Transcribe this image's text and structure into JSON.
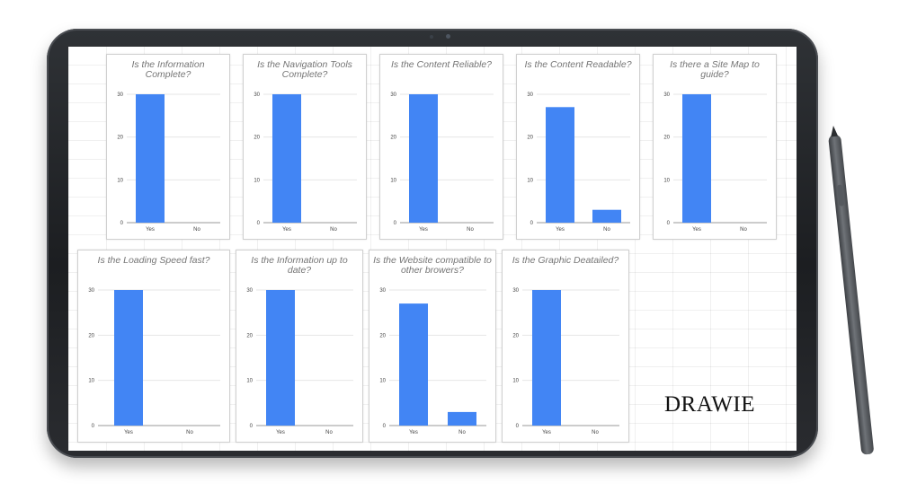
{
  "brand": {
    "watermark": "DRAWIE"
  },
  "colors": {
    "bar": "#4285f4",
    "axis": "#999999",
    "gridline": "#e6e6e6",
    "title": "#757575"
  },
  "chart_data": [
    {
      "type": "bar",
      "title": "Is the Information Complete?",
      "categories": [
        "Yes",
        "No"
      ],
      "values": [
        30,
        0
      ],
      "ylim": [
        0,
        30
      ],
      "yticks": [
        0,
        10,
        20,
        30
      ],
      "grid": true
    },
    {
      "type": "bar",
      "title": "Is the Navigation Tools Complete?",
      "categories": [
        "Yes",
        "No"
      ],
      "values": [
        30,
        0
      ],
      "ylim": [
        0,
        30
      ],
      "yticks": [
        0,
        10,
        20,
        30
      ],
      "grid": true
    },
    {
      "type": "bar",
      "title": "Is the Content Reliable?",
      "categories": [
        "Yes",
        "No"
      ],
      "values": [
        30,
        0
      ],
      "ylim": [
        0,
        30
      ],
      "yticks": [
        0,
        10,
        20,
        30
      ],
      "grid": true
    },
    {
      "type": "bar",
      "title": "Is the Content Readable?",
      "categories": [
        "Yes",
        "No"
      ],
      "values": [
        27,
        3
      ],
      "ylim": [
        0,
        30
      ],
      "yticks": [
        0,
        10,
        20,
        30
      ],
      "grid": true
    },
    {
      "type": "bar",
      "title": "Is there a Site Map to guide?",
      "categories": [
        "Yes",
        "No"
      ],
      "values": [
        30,
        0
      ],
      "ylim": [
        0,
        30
      ],
      "yticks": [
        0,
        10,
        20,
        30
      ],
      "grid": true
    },
    {
      "type": "bar",
      "title": "Is the Loading Speed fast?",
      "categories": [
        "Yes",
        "No"
      ],
      "values": [
        30,
        0
      ],
      "ylim": [
        0,
        30
      ],
      "yticks": [
        0,
        10,
        20,
        30
      ],
      "grid": true
    },
    {
      "type": "bar",
      "title": "Is the Information up to date?",
      "categories": [
        "Yes",
        "No"
      ],
      "values": [
        30,
        0
      ],
      "ylim": [
        0,
        30
      ],
      "yticks": [
        0,
        10,
        20,
        30
      ],
      "grid": true
    },
    {
      "type": "bar",
      "title": "Is the Website compatible to other browers?",
      "categories": [
        "Yes",
        "No"
      ],
      "values": [
        27,
        3
      ],
      "ylim": [
        0,
        30
      ],
      "yticks": [
        0,
        10,
        20,
        30
      ],
      "grid": true
    },
    {
      "type": "bar",
      "title": "Is the Graphic Deatailed?",
      "categories": [
        "Yes",
        "No"
      ],
      "values": [
        30,
        0
      ],
      "ylim": [
        0,
        30
      ],
      "yticks": [
        0,
        10,
        20,
        30
      ],
      "grid": true
    }
  ]
}
